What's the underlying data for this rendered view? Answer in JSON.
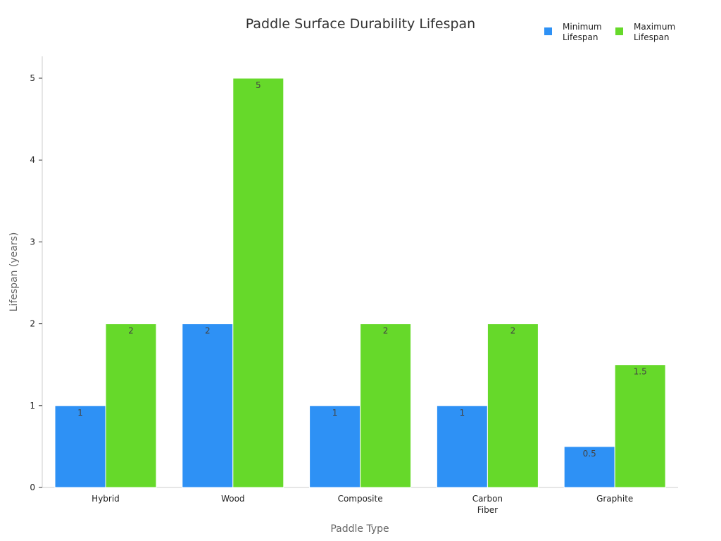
{
  "chart_data": {
    "type": "bar",
    "title": "Paddle Surface Durability Lifespan",
    "xlabel": "Paddle Type",
    "ylabel": "Lifespan (years)",
    "categories": [
      [
        "Hybrid"
      ],
      [
        "Wood"
      ],
      [
        "Composite"
      ],
      [
        "Carbon",
        "Fiber"
      ],
      [
        "Graphite"
      ]
    ],
    "series": [
      {
        "name": [
          "Minimum",
          "Lifespan"
        ],
        "color": "#2e91f5",
        "values": [
          1,
          2,
          1,
          1,
          0.5
        ]
      },
      {
        "name": [
          "Maximum",
          "Lifespan"
        ],
        "color": "#66d92a",
        "values": [
          2,
          5,
          2,
          2,
          1.5
        ]
      }
    ],
    "ylim": [
      0,
      5.25
    ],
    "yticks": [
      0,
      1,
      2,
      3,
      4,
      5
    ],
    "grid": false,
    "legend_position": "top-right"
  }
}
